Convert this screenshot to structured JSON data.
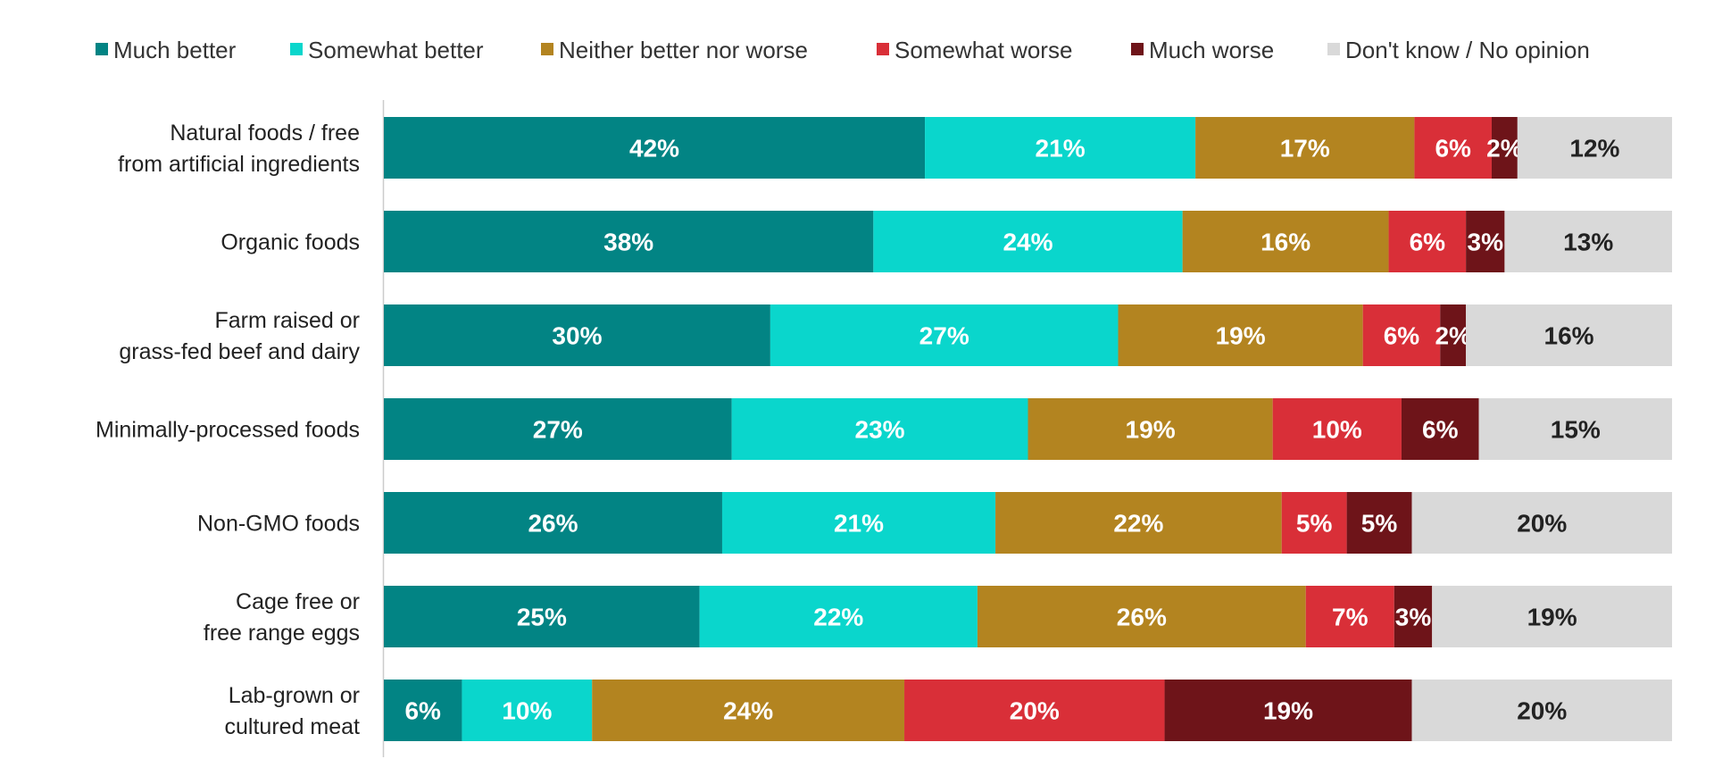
{
  "chart_data": {
    "type": "bar",
    "orientation": "horizontal",
    "stacked": true,
    "legend_position": "top",
    "xlim": [
      0,
      100
    ],
    "categories": [
      "Natural foods / free\nfrom artificial ingredients",
      "Organic foods",
      "Farm raised or\ngrass-fed beef and dairy",
      "Minimally-processed foods",
      "Non-GMO foods",
      "Cage free or\nfree range eggs",
      "Lab-grown or\ncultured meat"
    ],
    "series": [
      {
        "name": "Much better",
        "color": "#028484",
        "label_color": "#ffffff",
        "values": [
          42,
          38,
          30,
          27,
          26,
          25,
          6
        ]
      },
      {
        "name": "Somewhat better",
        "color": "#0ad6cc",
        "label_color": "#ffffff",
        "values": [
          21,
          24,
          27,
          23,
          21,
          22,
          10
        ]
      },
      {
        "name": "Neither better nor worse",
        "color": "#b38420",
        "label_color": "#ffffff",
        "values": [
          17,
          16,
          19,
          19,
          22,
          26,
          24
        ]
      },
      {
        "name": "Somewhat worse",
        "color": "#d92f38",
        "label_color": "#ffffff",
        "values": [
          6,
          6,
          6,
          10,
          5,
          7,
          20
        ]
      },
      {
        "name": "Much worse",
        "color": "#6e1419",
        "label_color": "#ffffff",
        "values": [
          2,
          3,
          2,
          6,
          5,
          3,
          19
        ]
      },
      {
        "name": "Don't know / No opinion",
        "color": "#d9d9d9",
        "label_color": "#222222",
        "values": [
          12,
          13,
          16,
          15,
          20,
          19,
          20
        ]
      }
    ],
    "value_suffix": "%"
  }
}
